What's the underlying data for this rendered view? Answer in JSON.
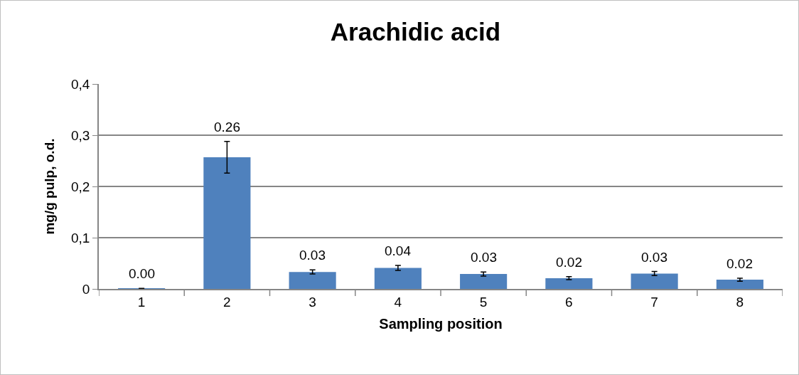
{
  "chart_data": {
    "type": "bar",
    "title": "Arachidic acid",
    "xlabel": "Sampling position",
    "ylabel": "mg/g pulp, o.d.",
    "categories": [
      "1",
      "2",
      "3",
      "4",
      "5",
      "6",
      "7",
      "8"
    ],
    "values": [
      0.001,
      0.257,
      0.033,
      0.041,
      0.029,
      0.021,
      0.03,
      0.018
    ],
    "errors": [
      null,
      0.031,
      0.004,
      0.005,
      0.004,
      0.003,
      0.004,
      0.003
    ],
    "value_labels": [
      "0.00",
      "0.26",
      "0.03",
      "0.04",
      "0.03",
      "0.02",
      "0.03",
      "0.02"
    ],
    "color": "#4f81bd",
    "ylim": [
      0,
      0.4
    ],
    "yticks": [
      {
        "value": 0,
        "label": "0"
      },
      {
        "value": 0.1,
        "label": "0,1"
      },
      {
        "value": 0.2,
        "label": "0,2"
      },
      {
        "value": 0.3,
        "label": "0,3"
      },
      {
        "value": 0.4,
        "label": "0,4"
      }
    ],
    "grid": "y",
    "legend": false
  }
}
